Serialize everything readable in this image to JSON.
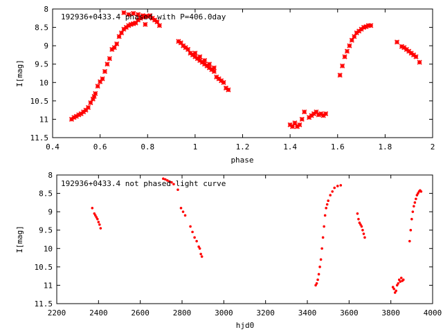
{
  "chart_data": [
    {
      "type": "scatter",
      "title": "192936+0433.4 phased with P=406.0day",
      "xlabel": "phase",
      "ylabel": "I[mag]",
      "xlim": [
        0.4,
        2
      ],
      "ylim": [
        11.5,
        8
      ],
      "y_inverted": true,
      "grid": false,
      "legend": "none",
      "xticks": [
        "0.4",
        "0.6",
        "0.8",
        "1",
        "1.2",
        "1.4",
        "1.6",
        "1.8",
        "2"
      ],
      "yticks": [
        "8",
        "8.5",
        "9",
        "9.5",
        "10",
        "10.5",
        "11",
        "11.5"
      ],
      "series": [
        {
          "color": "#ff0000",
          "marker": "cross",
          "points": [
            [
              0.48,
              11.0
            ],
            [
              0.49,
              10.95
            ],
            [
              0.5,
              10.92
            ],
            [
              0.51,
              10.88
            ],
            [
              0.52,
              10.85
            ],
            [
              0.53,
              10.8
            ],
            [
              0.54,
              10.75
            ],
            [
              0.55,
              10.68
            ],
            [
              0.56,
              10.55
            ],
            [
              0.57,
              10.45
            ],
            [
              0.575,
              10.38
            ],
            [
              0.58,
              10.3
            ],
            [
              0.59,
              10.1
            ],
            [
              0.6,
              9.98
            ],
            [
              0.61,
              9.9
            ],
            [
              0.62,
              9.7
            ],
            [
              0.63,
              9.5
            ],
            [
              0.64,
              9.35
            ],
            [
              0.65,
              9.1
            ],
            [
              0.66,
              9.05
            ],
            [
              0.67,
              8.95
            ],
            [
              0.68,
              8.75
            ],
            [
              0.69,
              8.65
            ],
            [
              0.7,
              8.55
            ],
            [
              0.71,
              8.5
            ],
            [
              0.72,
              8.45
            ],
            [
              0.73,
              8.42
            ],
            [
              0.74,
              8.4
            ],
            [
              0.75,
              8.38
            ],
            [
              0.76,
              8.3
            ],
            [
              0.77,
              8.25
            ],
            [
              0.78,
              8.22
            ],
            [
              0.79,
              8.2
            ],
            [
              0.8,
              8.2
            ],
            [
              0.81,
              8.18
            ],
            [
              0.82,
              8.25
            ],
            [
              0.83,
              8.3
            ],
            [
              0.84,
              8.35
            ],
            [
              0.85,
              8.45
            ],
            [
              0.7,
              8.1
            ],
            [
              0.72,
              8.15
            ],
            [
              0.74,
              8.12
            ],
            [
              0.76,
              8.15
            ],
            [
              0.78,
              8.18
            ],
            [
              0.79,
              8.42
            ],
            [
              0.93,
              8.88
            ],
            [
              0.94,
              8.92
            ],
            [
              0.95,
              9.0
            ],
            [
              0.96,
              9.05
            ],
            [
              0.97,
              9.1
            ],
            [
              0.98,
              9.2
            ],
            [
              0.99,
              9.25
            ],
            [
              1.0,
              9.3
            ],
            [
              1.01,
              9.35
            ],
            [
              1.02,
              9.4
            ],
            [
              1.03,
              9.45
            ],
            [
              1.04,
              9.5
            ],
            [
              1.05,
              9.55
            ],
            [
              1.06,
              9.6
            ],
            [
              1.07,
              9.65
            ],
            [
              1.08,
              9.7
            ],
            [
              1.09,
              9.85
            ],
            [
              1.1,
              9.9
            ],
            [
              1.11,
              9.95
            ],
            [
              1.12,
              10.0
            ],
            [
              1.13,
              10.15
            ],
            [
              1.14,
              10.2
            ],
            [
              1.0,
              9.2
            ],
            [
              1.02,
              9.3
            ],
            [
              1.04,
              9.4
            ],
            [
              1.06,
              9.5
            ],
            [
              1.08,
              9.6
            ],
            [
              1.4,
              11.15
            ],
            [
              1.41,
              11.2
            ],
            [
              1.42,
              11.1
            ],
            [
              1.43,
              11.2
            ],
            [
              1.44,
              11.15
            ],
            [
              1.45,
              11.0
            ],
            [
              1.46,
              10.8
            ],
            [
              1.48,
              10.95
            ],
            [
              1.49,
              10.9
            ],
            [
              1.5,
              10.85
            ],
            [
              1.51,
              10.8
            ],
            [
              1.52,
              10.88
            ],
            [
              1.53,
              10.85
            ],
            [
              1.54,
              10.9
            ],
            [
              1.55,
              10.85
            ],
            [
              1.61,
              9.8
            ],
            [
              1.62,
              9.55
            ],
            [
              1.63,
              9.3
            ],
            [
              1.64,
              9.15
            ],
            [
              1.65,
              9.0
            ],
            [
              1.66,
              8.85
            ],
            [
              1.67,
              8.75
            ],
            [
              1.68,
              8.65
            ],
            [
              1.69,
              8.6
            ],
            [
              1.7,
              8.55
            ],
            [
              1.71,
              8.5
            ],
            [
              1.72,
              8.48
            ],
            [
              1.73,
              8.45
            ],
            [
              1.74,
              8.45
            ],
            [
              1.85,
              8.9
            ],
            [
              1.87,
              9.02
            ],
            [
              1.88,
              9.05
            ],
            [
              1.89,
              9.1
            ],
            [
              1.9,
              9.15
            ],
            [
              1.91,
              9.2
            ],
            [
              1.92,
              9.25
            ],
            [
              1.93,
              9.3
            ],
            [
              1.945,
              9.45
            ]
          ]
        }
      ]
    },
    {
      "type": "scatter",
      "title": "192936+0433.4 not phased light curve",
      "xlabel": "hjd0",
      "ylabel": "I[mag]",
      "xlim": [
        2200,
        4000
      ],
      "ylim": [
        11.5,
        8
      ],
      "y_inverted": true,
      "grid": false,
      "legend": "none",
      "xticks": [
        "2200",
        "2400",
        "2600",
        "2800",
        "3000",
        "3200",
        "3400",
        "3600",
        "3800",
        "4000"
      ],
      "yticks": [
        "8",
        "8.5",
        "9",
        "9.5",
        "10",
        "10.5",
        "11",
        "11.5"
      ],
      "series": [
        {
          "color": "#ff0000",
          "marker": "dot",
          "points": [
            [
              2370,
              8.9
            ],
            [
              2380,
              9.05
            ],
            [
              2385,
              9.1
            ],
            [
              2390,
              9.15
            ],
            [
              2395,
              9.2
            ],
            [
              2400,
              9.28
            ],
            [
              2405,
              9.35
            ],
            [
              2410,
              9.45
            ],
            [
              2710,
              8.1
            ],
            [
              2720,
              8.12
            ],
            [
              2730,
              8.15
            ],
            [
              2740,
              8.18
            ],
            [
              2750,
              8.2
            ],
            [
              2760,
              8.25
            ],
            [
              2780,
              8.4
            ],
            [
              2795,
              8.9
            ],
            [
              2805,
              9.0
            ],
            [
              2815,
              9.1
            ],
            [
              2840,
              9.4
            ],
            [
              2850,
              9.55
            ],
            [
              2860,
              9.7
            ],
            [
              2870,
              9.8
            ],
            [
              2880,
              9.95
            ],
            [
              2885,
              10.0
            ],
            [
              2890,
              10.15
            ],
            [
              2895,
              10.22
            ],
            [
              3440,
              11.0
            ],
            [
              3445,
              10.95
            ],
            [
              3450,
              10.85
            ],
            [
              3455,
              10.7
            ],
            [
              3460,
              10.5
            ],
            [
              3465,
              10.3
            ],
            [
              3470,
              10.0
            ],
            [
              3475,
              9.7
            ],
            [
              3480,
              9.4
            ],
            [
              3485,
              9.1
            ],
            [
              3490,
              8.9
            ],
            [
              3495,
              8.8
            ],
            [
              3500,
              8.7
            ],
            [
              3510,
              8.55
            ],
            [
              3520,
              8.45
            ],
            [
              3530,
              8.35
            ],
            [
              3545,
              8.3
            ],
            [
              3560,
              8.28
            ],
            [
              3640,
              9.05
            ],
            [
              3645,
              9.2
            ],
            [
              3650,
              9.3
            ],
            [
              3655,
              9.35
            ],
            [
              3660,
              9.4
            ],
            [
              3665,
              9.5
            ],
            [
              3670,
              9.6
            ],
            [
              3675,
              9.7
            ],
            [
              3810,
              11.05
            ],
            [
              3815,
              11.1
            ],
            [
              3820,
              11.2
            ],
            [
              3825,
              11.15
            ],
            [
              3830,
              11.0
            ],
            [
              3835,
              10.95
            ],
            [
              3840,
              10.85
            ],
            [
              3845,
              10.9
            ],
            [
              3850,
              10.8
            ],
            [
              3855,
              10.88
            ],
            [
              3860,
              10.85
            ],
            [
              3890,
              9.8
            ],
            [
              3895,
              9.5
            ],
            [
              3900,
              9.2
            ],
            [
              3905,
              9.0
            ],
            [
              3910,
              8.85
            ],
            [
              3915,
              8.75
            ],
            [
              3920,
              8.65
            ],
            [
              3925,
              8.55
            ],
            [
              3930,
              8.5
            ],
            [
              3935,
              8.45
            ],
            [
              3940,
              8.42
            ],
            [
              3945,
              8.45
            ]
          ]
        }
      ]
    }
  ]
}
